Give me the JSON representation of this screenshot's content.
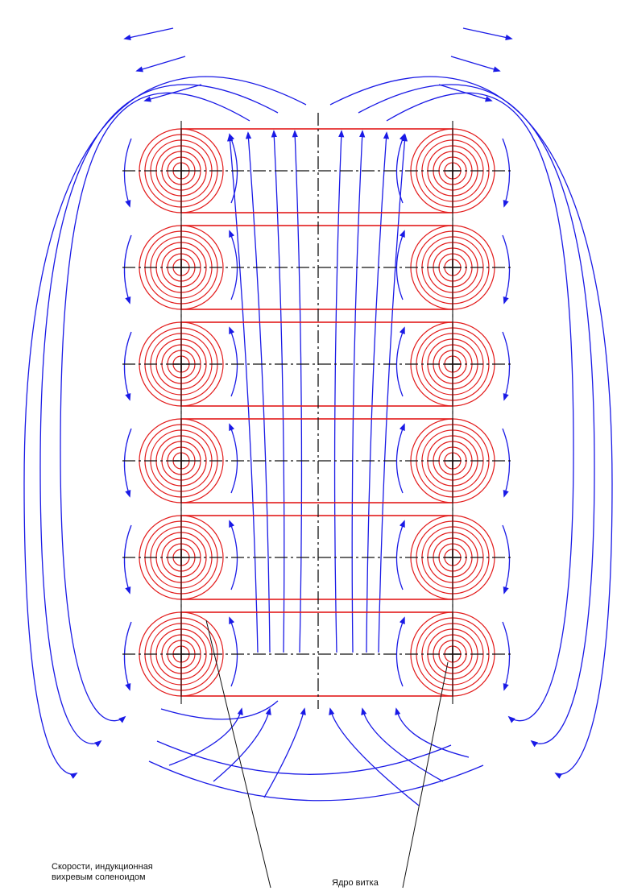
{
  "labels": {
    "left_line1": "Скорости, индукционная",
    "left_line2": "вихревым соленоидом",
    "right": "Ядро витка"
  },
  "colors": {
    "coil": "#e31b1b",
    "field": "#1a1ae6",
    "axis": "#111111",
    "background": "#ffffff"
  },
  "diagram": {
    "coil_rows": 6,
    "coil_columns": 2,
    "rings_per_coil": 7
  }
}
